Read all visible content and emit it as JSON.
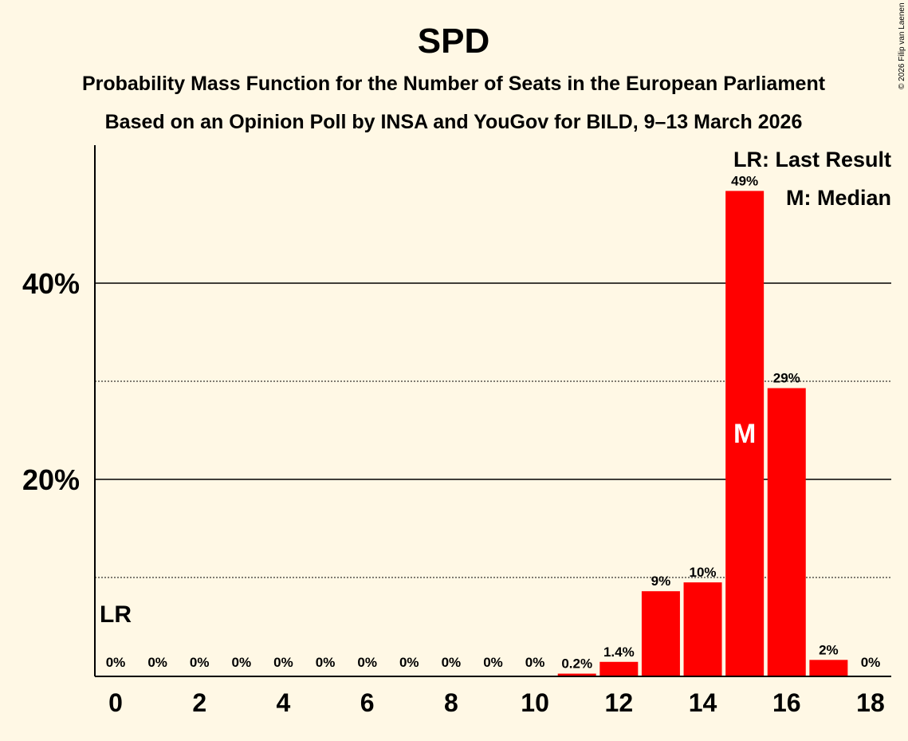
{
  "chart_data": {
    "type": "bar",
    "title": "SPD",
    "subtitle": "Probability Mass Function for the Number of Seats in the European Parliament",
    "subtitle2": "Based on an Opinion Poll by INSA and YouGov for BILD, 9–13 March 2026",
    "copyright": "© 2026 Filip van Laenen",
    "categories": [
      0,
      1,
      2,
      3,
      4,
      5,
      6,
      7,
      8,
      9,
      10,
      11,
      12,
      13,
      14,
      15,
      16,
      17,
      18
    ],
    "values": [
      0,
      0,
      0,
      0,
      0,
      0,
      0,
      0,
      0,
      0,
      0,
      0.2,
      1.4,
      8.6,
      9.5,
      49.4,
      29.3,
      1.6,
      0
    ],
    "data_labels": [
      "0%",
      "0%",
      "0%",
      "0%",
      "0%",
      "0%",
      "0%",
      "0%",
      "0%",
      "0%",
      "0%",
      "0.2%",
      "1.4%",
      "9%",
      "10%",
      "49%",
      "29%",
      "2%",
      "0%"
    ],
    "x_tick_labels": [
      "0",
      "2",
      "4",
      "6",
      "8",
      "10",
      "12",
      "14",
      "16",
      "18"
    ],
    "x_ticks": [
      0,
      2,
      4,
      6,
      8,
      10,
      12,
      14,
      16,
      18
    ],
    "y_tick_labels": [
      "20%",
      "40%"
    ],
    "y_ticks": [
      20,
      40
    ],
    "minor_gridlines": [
      10,
      30
    ],
    "ylim": [
      0,
      54
    ],
    "last_result_seat": 0,
    "last_result_label": "LR",
    "median_seat": 15,
    "median_label": "M",
    "legend": [
      "LR: Last Result",
      "M: Median"
    ],
    "legend_position": "top-right",
    "bar_color": "#ff0000",
    "background": "#fff8e5"
  }
}
